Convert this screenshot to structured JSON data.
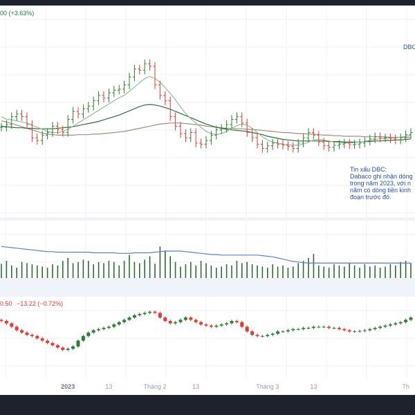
{
  "header": {
    "price_change": "00 (+3.63%)",
    "symbol_tag": "DBC"
  },
  "index_header": {
    "value": "0.50",
    "change": "−13.22 (−0.72%)"
  },
  "note": {
    "lines": [
      "Tin xấu DBC:",
      "Dabaco ghi nhận dòng",
      "trong năm 2023, với n",
      "năm có dòng tiền kinh",
      "đoạn trước đó."
    ]
  },
  "colors": {
    "up": "#2e7d32",
    "down": "#e53935",
    "ma_fast": "#8fbf98",
    "ma_mid": "#2e6e3f",
    "ma_slow": "#a58e76",
    "vol_ma": "#5b7fd4",
    "vol_bar": "#2f6b3a",
    "text_up": "#1b7d39",
    "text_down": "#e53935",
    "note": "#2a4fa8"
  },
  "x_axis": {
    "ticks": [
      {
        "label": "2023",
        "i": 13,
        "bold": true
      },
      {
        "label": "13",
        "i": 21,
        "bold": false
      },
      {
        "label": "Tháng 2",
        "i": 30,
        "bold": false
      },
      {
        "label": "13",
        "i": 38,
        "bold": false
      },
      {
        "label": "Tháng 3",
        "i": 52,
        "bold": false
      },
      {
        "label": "13",
        "i": 61,
        "bold": false
      },
      {
        "label": "Th",
        "i": 79,
        "bold": false
      }
    ]
  },
  "chart_data": [
    {
      "type": "ohlc",
      "panel": "price",
      "x": [
        0,
        1,
        2,
        3,
        4,
        5,
        6,
        7,
        8,
        9,
        10,
        11,
        12,
        13,
        14,
        15,
        16,
        17,
        18,
        19,
        20,
        21,
        22,
        23,
        24,
        25,
        26,
        27,
        28,
        29,
        30,
        31,
        32,
        33,
        34,
        35,
        36,
        37,
        38,
        39,
        40,
        41,
        42,
        43,
        44,
        45,
        46,
        47,
        48,
        49,
        50,
        51,
        52,
        53,
        54,
        55,
        56,
        57,
        58,
        59,
        60,
        61,
        62,
        63,
        64,
        65,
        66,
        67,
        68,
        69,
        70,
        71,
        72,
        73,
        74,
        75,
        76,
        77,
        78,
        79,
        80
      ],
      "close": [
        1.7,
        1.75,
        1.9,
        1.95,
        1.9,
        1.75,
        1.5,
        1.45,
        1.55,
        1.6,
        1.72,
        1.65,
        1.6,
        1.85,
        2.0,
        1.95,
        2.05,
        2.1,
        2.2,
        2.3,
        2.25,
        2.35,
        2.4,
        2.42,
        2.5,
        2.65,
        2.8,
        2.78,
        2.9,
        2.85,
        2.5,
        2.3,
        2.2,
        1.9,
        1.72,
        1.58,
        1.5,
        1.6,
        1.4,
        1.38,
        1.45,
        1.55,
        1.65,
        1.68,
        1.75,
        1.85,
        1.9,
        1.78,
        1.6,
        1.5,
        1.38,
        1.3,
        1.35,
        1.4,
        1.38,
        1.36,
        1.34,
        1.3,
        1.4,
        1.5,
        1.6,
        1.55,
        1.42,
        1.35,
        1.32,
        1.36,
        1.38,
        1.4,
        1.37,
        1.38,
        1.4,
        1.44,
        1.48,
        1.52,
        1.5,
        1.5,
        1.48,
        1.46,
        1.5,
        1.56,
        1.6
      ],
      "ma_fast": [
        1.9,
        1.85,
        1.84,
        1.82,
        1.8,
        1.78,
        1.74,
        1.7,
        1.66,
        1.62,
        1.6,
        1.6,
        1.62,
        1.66,
        1.72,
        1.78,
        1.84,
        1.9,
        1.96,
        2.02,
        2.08,
        2.14,
        2.2,
        2.26,
        2.3,
        2.38,
        2.46,
        2.54,
        2.62,
        2.66,
        2.62,
        2.55,
        2.45,
        2.34,
        2.22,
        2.08,
        1.96,
        1.86,
        1.78,
        1.7,
        1.62,
        1.58,
        1.56,
        1.58,
        1.62,
        1.68,
        1.73,
        1.76,
        1.74,
        1.68,
        1.6,
        1.52,
        1.46,
        1.42,
        1.4,
        1.38,
        1.37,
        1.36,
        1.36,
        1.38,
        1.42,
        1.46,
        1.47,
        1.46,
        1.44,
        1.42,
        1.41,
        1.4,
        1.4,
        1.41,
        1.42,
        1.43,
        1.45,
        1.47,
        1.48,
        1.49,
        1.5,
        1.5,
        1.51,
        1.53,
        1.55
      ],
      "ma_mid": [
        1.72,
        1.71,
        1.7,
        1.69,
        1.69,
        1.68,
        1.68,
        1.67,
        1.67,
        1.67,
        1.67,
        1.68,
        1.69,
        1.7,
        1.71,
        1.73,
        1.75,
        1.77,
        1.79,
        1.81,
        1.84,
        1.87,
        1.9,
        1.93,
        1.97,
        2.01,
        2.05,
        2.09,
        2.12,
        2.13,
        2.12,
        2.1,
        2.07,
        2.04,
        2.0,
        1.96,
        1.92,
        1.88,
        1.84,
        1.8,
        1.76,
        1.73,
        1.7,
        1.68,
        1.66,
        1.65,
        1.64,
        1.63,
        1.62,
        1.6,
        1.58,
        1.56,
        1.53,
        1.51,
        1.49,
        1.47,
        1.46,
        1.45,
        1.44,
        1.44,
        1.44,
        1.44,
        1.44,
        1.44,
        1.43,
        1.43,
        1.43,
        1.42,
        1.42,
        1.42,
        1.42,
        1.43,
        1.43,
        1.44,
        1.44,
        1.45,
        1.45,
        1.46,
        1.46,
        1.47,
        1.48
      ],
      "ma_slow": [
        1.82,
        1.8,
        1.77,
        1.74,
        1.71,
        1.68,
        1.65,
        1.62,
        1.59,
        1.57,
        1.56,
        1.55,
        1.55,
        1.55,
        1.55,
        1.56,
        1.56,
        1.56,
        1.57,
        1.57,
        1.58,
        1.59,
        1.6,
        1.61,
        1.62,
        1.64,
        1.66,
        1.68,
        1.7,
        1.72,
        1.74,
        1.76,
        1.77,
        1.78,
        1.78,
        1.78,
        1.77,
        1.76,
        1.75,
        1.74,
        1.72,
        1.71,
        1.7,
        1.69,
        1.68,
        1.68,
        1.67,
        1.67,
        1.66,
        1.66,
        1.65,
        1.64,
        1.63,
        1.62,
        1.61,
        1.6,
        1.6,
        1.59,
        1.58,
        1.58,
        1.57,
        1.57,
        1.56,
        1.55,
        1.55,
        1.54,
        1.54,
        1.53,
        1.53,
        1.53,
        1.53,
        1.52,
        1.52,
        1.52,
        1.52,
        1.52,
        1.51,
        1.51,
        1.51,
        1.51,
        1.51
      ],
      "ylim": [
        0,
        4.0
      ]
    },
    {
      "type": "bar",
      "panel": "volume",
      "values": [
        25,
        30,
        22,
        18,
        28,
        26,
        24,
        22,
        20,
        18,
        24,
        22,
        30,
        35,
        26,
        28,
        32,
        30,
        24,
        28,
        26,
        30,
        28,
        22,
        30,
        40,
        28,
        26,
        32,
        38,
        25,
        55,
        48,
        38,
        28,
        20,
        24,
        28,
        22,
        30,
        26,
        22,
        18,
        20,
        24,
        22,
        30,
        26,
        28,
        24,
        22,
        20,
        18,
        24,
        20,
        22,
        18,
        20,
        26,
        30,
        35,
        42,
        22,
        20,
        18,
        24,
        22,
        20,
        26,
        22,
        18,
        24,
        20,
        22,
        18,
        20,
        24,
        22,
        28,
        30,
        26
      ],
      "highlight": [
        0,
        0,
        0,
        0,
        0,
        0,
        0,
        0,
        0,
        0,
        0,
        0,
        45,
        0,
        0,
        0,
        0,
        0,
        0,
        0,
        0,
        0,
        0,
        0,
        0,
        0,
        0,
        0,
        0,
        0,
        0,
        0,
        0,
        0,
        0,
        0,
        0,
        0,
        0,
        0,
        0,
        0,
        0,
        0,
        0,
        0,
        0,
        0,
        0,
        0,
        0,
        0,
        0,
        0,
        0,
        0,
        0,
        0,
        0,
        0,
        0,
        0,
        0,
        0,
        0,
        0,
        0,
        0,
        0,
        0,
        0,
        0,
        0,
        0,
        0,
        0,
        0,
        0,
        0,
        0,
        0
      ],
      "ma": [
        55,
        54,
        53,
        52,
        51,
        50,
        49,
        48,
        47,
        46,
        46,
        45,
        45,
        45,
        45,
        45,
        45,
        45,
        44,
        44,
        44,
        44,
        44,
        43,
        43,
        43,
        44,
        44,
        44,
        44,
        45,
        46,
        47,
        47,
        47,
        47,
        46,
        45,
        44,
        43,
        42,
        41,
        41,
        40,
        40,
        40,
        40,
        40,
        40,
        40,
        40,
        39,
        38,
        37,
        35,
        33,
        31,
        29,
        28,
        27,
        26,
        26,
        26,
        26,
        26,
        26,
        26,
        26,
        26,
        26,
        26,
        26,
        26,
        26,
        26,
        26,
        26,
        26,
        26,
        26,
        26
      ],
      "ylim": [
        0,
        100
      ]
    },
    {
      "type": "candlestick",
      "panel": "index",
      "open": [
        1.0,
        0.95,
        0.85,
        0.7,
        0.55,
        0.45,
        0.35,
        0.3,
        0.2,
        0.1,
        0.0,
        -0.1,
        -0.2,
        -0.3,
        -0.25,
        -0.15,
        0.1,
        0.3,
        0.45,
        0.55,
        0.6,
        0.65,
        0.7,
        0.8,
        0.9,
        1.0,
        1.1,
        1.2,
        1.25,
        1.3,
        1.35,
        1.3,
        1.1,
        0.95,
        0.85,
        0.9,
        1.0,
        1.1,
        1.0,
        0.9,
        0.8,
        0.75,
        0.7,
        0.75,
        0.8,
        0.85,
        0.95,
        0.9,
        0.7,
        0.5,
        0.35,
        0.3,
        0.3,
        0.35,
        0.4,
        0.5,
        0.5,
        0.55,
        0.6,
        0.6,
        0.65,
        0.65,
        0.7,
        0.7,
        0.7,
        0.65,
        0.65,
        0.6,
        0.55,
        0.5,
        0.5,
        0.52,
        0.55,
        0.6,
        0.65,
        0.7,
        0.75,
        0.8,
        0.85,
        0.9,
        1.0
      ],
      "close": [
        0.95,
        0.85,
        0.7,
        0.55,
        0.45,
        0.35,
        0.3,
        0.2,
        0.1,
        0.0,
        -0.1,
        -0.2,
        -0.3,
        -0.25,
        -0.15,
        0.1,
        0.3,
        0.45,
        0.55,
        0.6,
        0.65,
        0.7,
        0.8,
        0.9,
        1.0,
        1.1,
        1.2,
        1.25,
        1.3,
        1.35,
        1.3,
        1.1,
        0.95,
        0.85,
        0.9,
        1.0,
        1.1,
        1.0,
        0.9,
        0.8,
        0.75,
        0.7,
        0.75,
        0.8,
        0.85,
        0.95,
        0.9,
        0.7,
        0.5,
        0.35,
        0.3,
        0.3,
        0.35,
        0.4,
        0.5,
        0.5,
        0.55,
        0.6,
        0.6,
        0.65,
        0.65,
        0.7,
        0.7,
        0.7,
        0.65,
        0.65,
        0.6,
        0.55,
        0.5,
        0.5,
        0.52,
        0.55,
        0.6,
        0.65,
        0.7,
        0.75,
        0.8,
        0.85,
        0.9,
        1.0,
        1.1
      ],
      "ylim": [
        -1.5,
        2.0
      ]
    }
  ]
}
